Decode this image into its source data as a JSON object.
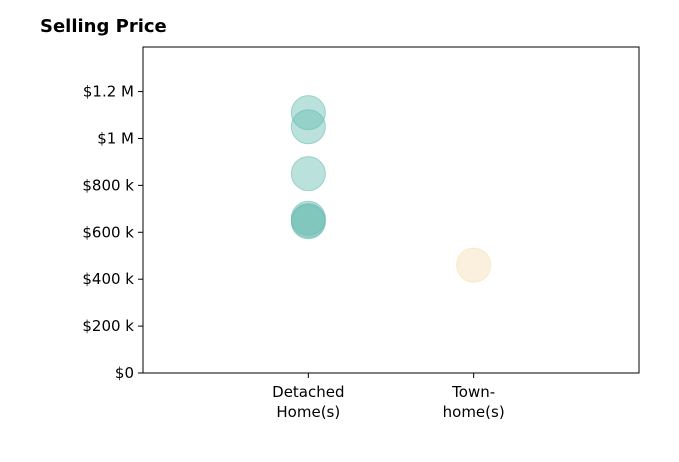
{
  "chart_data": {
    "type": "scatter",
    "title": "Selling Price",
    "xlabel": "",
    "ylabel": "",
    "categories": [
      "Detached Home(s)",
      "Town-home(s)"
    ],
    "category_labels": [
      [
        "Detached",
        "Home(s)"
      ],
      [
        "Town-",
        "home(s)"
      ]
    ],
    "xlim": [
      -1,
      2
    ],
    "ylim": [
      0,
      1390000
    ],
    "yticks": [
      0,
      200000,
      400000,
      600000,
      800000,
      1000000,
      1200000
    ],
    "ytick_labels": [
      "$0",
      "$200 k",
      "$400 k",
      "$600 k",
      "$800 k",
      "$1 M",
      "$1.2 M"
    ],
    "grid": false,
    "legend": "none",
    "series": [
      {
        "category": "Detached Home(s)",
        "color": "#69bdb1",
        "values": [
          1110000,
          1050000,
          850000,
          660000,
          650000,
          645000
        ]
      },
      {
        "category": "Town-home(s)",
        "color": "#f5deb3",
        "values": [
          460000
        ]
      }
    ]
  }
}
